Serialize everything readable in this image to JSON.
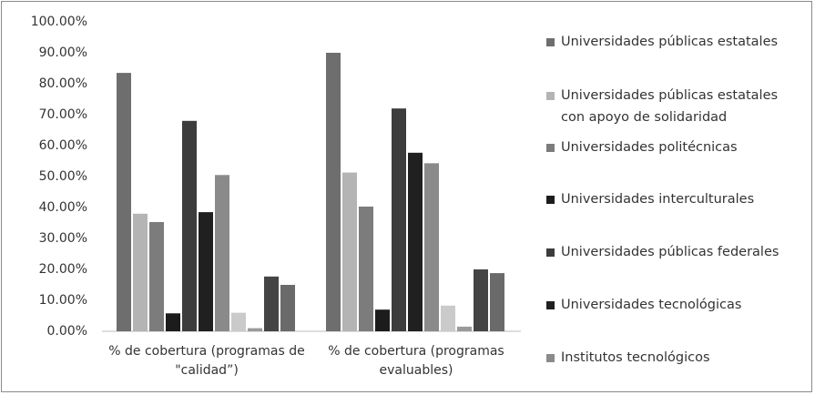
{
  "chart_data": {
    "type": "bar",
    "categories": [
      "% de cobertura (programas de \"calidad”)",
      "% de cobertura (programas evaluables)"
    ],
    "series": [
      {
        "name": "Universidades públicas estatales",
        "color": "#6e6e6e",
        "values": [
          83.5,
          90
        ]
      },
      {
        "name": "Universidades públicas estatales con apoyo de solidaridad",
        "color": "#b4b4b4",
        "values": [
          38,
          51.3
        ]
      },
      {
        "name": "Universidades politécnicas",
        "color": "#7c7c7c",
        "values": [
          35.3,
          40.3
        ]
      },
      {
        "name": "Universidades interculturales",
        "color": "#1c1c1c",
        "values": [
          5.8,
          7
        ]
      },
      {
        "name": "Universidades públicas federales",
        "color": "#3c3c3c",
        "values": [
          68,
          72
        ]
      },
      {
        "name": "Universidades tecnológicas",
        "color": "#202020",
        "values": [
          38.5,
          57.7
        ]
      },
      {
        "name": "Institutos tecnológicos",
        "color": "#8a8a8a",
        "values": [
          50.5,
          54.3
        ]
      },
      {
        "name": null,
        "color": "#cacaca",
        "values": [
          6,
          8.3
        ]
      },
      {
        "name": null,
        "color": "#9a9a9a",
        "values": [
          1,
          1.5
        ]
      },
      {
        "name": null,
        "color": "#444444",
        "values": [
          17.7,
          20
        ]
      },
      {
        "name": null,
        "color": "#6a6a6a",
        "values": [
          15,
          18.8
        ]
      }
    ],
    "ylim": [
      0,
      100
    ],
    "yticks": [
      {
        "value": 0,
        "label": "0.00%"
      },
      {
        "value": 10,
        "label": "10.00%"
      },
      {
        "value": 20,
        "label": "20.00%"
      },
      {
        "value": 30,
        "label": "30.00%"
      },
      {
        "value": 40,
        "label": "40.00%"
      },
      {
        "value": 50,
        "label": "50.00%"
      },
      {
        "value": 60,
        "label": "60.00%"
      },
      {
        "value": 70,
        "label": "70.00%"
      },
      {
        "value": 80,
        "label": "80.00%"
      },
      {
        "value": 90,
        "label": "90.00%"
      },
      {
        "value": 100,
        "label": "100.00%"
      }
    ],
    "grid": false
  }
}
